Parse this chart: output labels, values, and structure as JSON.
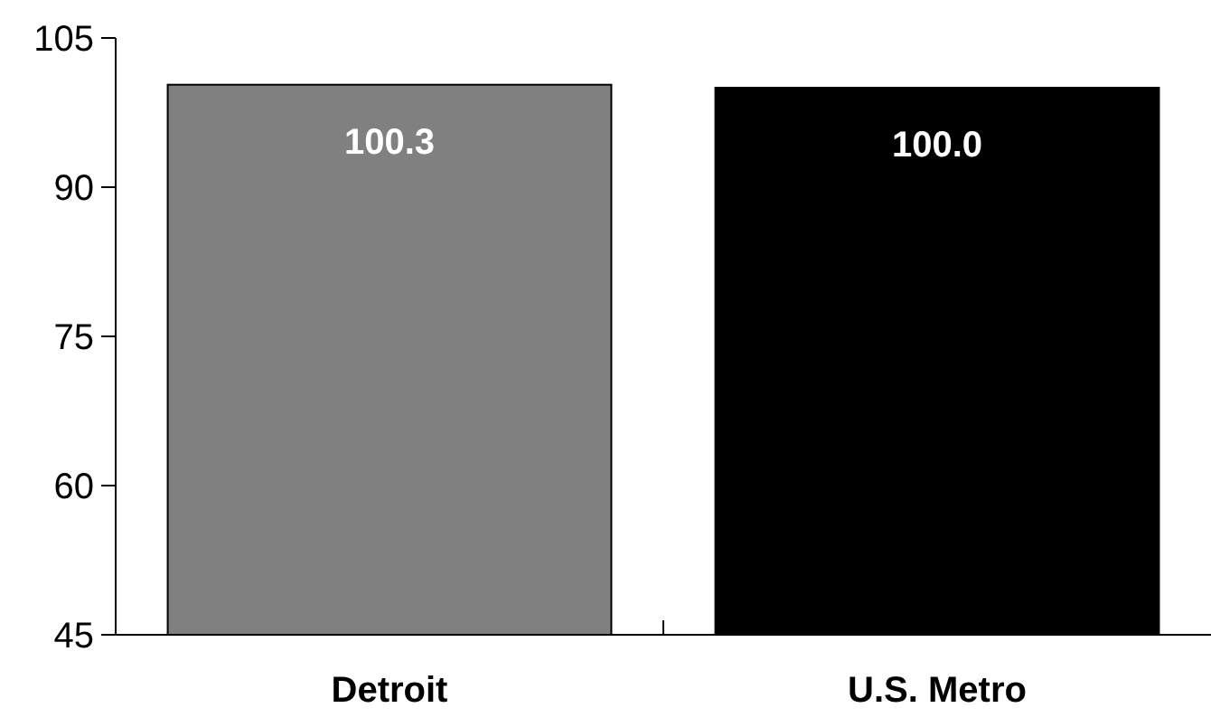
{
  "chart_data": {
    "type": "bar",
    "categories": [
      "Detroit",
      "U.S. Metro"
    ],
    "values": [
      100.3,
      100.0
    ],
    "colors": [
      "#808080",
      "#000000"
    ],
    "value_labels": [
      "100.3",
      "100.0"
    ],
    "ylim": [
      45,
      105
    ],
    "yticks": [
      45,
      60,
      75,
      90,
      105
    ]
  }
}
